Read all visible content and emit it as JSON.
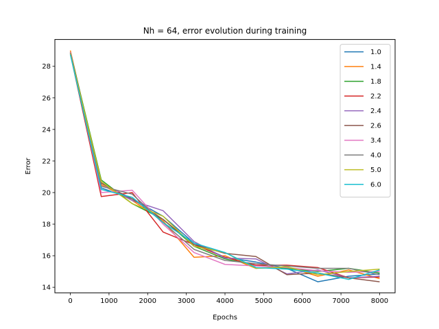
{
  "chart_data": {
    "type": "line",
    "title": "Nh = 64, error evolution during training",
    "xlabel": "Epochs",
    "ylabel": "Error",
    "xlim": [
      -400,
      8400
    ],
    "ylim": [
      13.65,
      29.7
    ],
    "xticks": [
      0,
      1000,
      2000,
      3000,
      4000,
      5000,
      6000,
      7000,
      8000
    ],
    "yticks": [
      14,
      16,
      18,
      20,
      22,
      24,
      26,
      28
    ],
    "grid": false,
    "legend_position": "top-right",
    "x": [
      0,
      800,
      1600,
      2400,
      3200,
      4000,
      4800,
      5600,
      6400,
      7200,
      8000
    ],
    "series": [
      {
        "name": "1.0",
        "color": "#1f77b4",
        "values": [
          28.8,
          20.3,
          19.6,
          18.5,
          16.8,
          15.9,
          15.6,
          15.2,
          14.35,
          14.7,
          14.85
        ]
      },
      {
        "name": "1.4",
        "color": "#ff7f0e",
        "values": [
          29.0,
          20.5,
          19.5,
          18.2,
          15.9,
          16.0,
          15.2,
          15.3,
          14.7,
          15.1,
          14.55
        ]
      },
      {
        "name": "1.8",
        "color": "#2ca02c",
        "values": [
          28.9,
          20.8,
          19.3,
          18.3,
          16.6,
          15.8,
          15.4,
          15.2,
          15.0,
          15.2,
          14.9
        ]
      },
      {
        "name": "2.2",
        "color": "#d62728",
        "values": [
          28.8,
          19.75,
          20.0,
          17.5,
          16.7,
          15.9,
          15.4,
          15.4,
          15.25,
          14.6,
          14.65
        ]
      },
      {
        "name": "2.4",
        "color": "#9467bd",
        "values": [
          28.8,
          20.6,
          19.5,
          18.85,
          16.9,
          15.85,
          15.8,
          14.85,
          15.1,
          14.6,
          14.7
        ]
      },
      {
        "name": "2.6",
        "color": "#8c564b",
        "values": [
          28.9,
          20.6,
          19.6,
          18.3,
          16.7,
          16.15,
          15.95,
          14.8,
          14.9,
          14.6,
          14.35
        ]
      },
      {
        "name": "3.4",
        "color": "#e377c2",
        "values": [
          28.9,
          20.0,
          20.15,
          18.0,
          16.2,
          15.45,
          15.35,
          15.25,
          15.05,
          14.95,
          15.0
        ]
      },
      {
        "name": "4.0",
        "color": "#7f7f7f",
        "values": [
          28.85,
          20.4,
          19.9,
          18.1,
          16.4,
          15.7,
          15.5,
          15.35,
          15.2,
          15.2,
          14.8
        ]
      },
      {
        "name": "5.0",
        "color": "#bcbd22",
        "values": [
          28.8,
          20.7,
          19.3,
          18.5,
          16.6,
          16.2,
          15.2,
          15.3,
          14.8,
          15.0,
          15.15
        ]
      },
      {
        "name": "6.0",
        "color": "#17becf",
        "values": [
          28.75,
          20.2,
          19.7,
          18.1,
          16.8,
          16.2,
          15.25,
          15.15,
          14.9,
          14.5,
          15.1
        ]
      }
    ]
  }
}
